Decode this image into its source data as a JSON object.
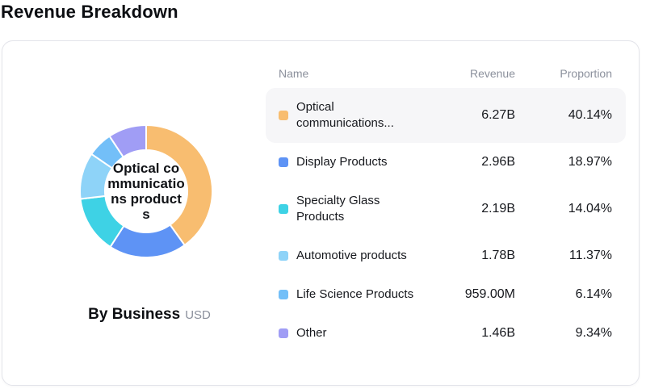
{
  "page": {
    "title": "Revenue Breakdown"
  },
  "chart": {
    "center_label": "Optical communications products",
    "caption": "By Business",
    "unit": "USD"
  },
  "table": {
    "columns": [
      "Name",
      "Revenue",
      "Proportion"
    ],
    "rows": [
      {
        "name": "Optical communications...",
        "revenue": "6.27B",
        "proportion": "40.14%",
        "color": "#F8BD70",
        "highlighted": true
      },
      {
        "name": "Display Products",
        "revenue": "2.96B",
        "proportion": "18.97%",
        "color": "#5E93F5",
        "highlighted": false
      },
      {
        "name": "Specialty Glass Products",
        "revenue": "2.19B",
        "proportion": "14.04%",
        "color": "#3ED2E5",
        "highlighted": false
      },
      {
        "name": "Automotive products",
        "revenue": "1.78B",
        "proportion": "11.37%",
        "color": "#8ED3F8",
        "highlighted": false
      },
      {
        "name": "Life Science Products",
        "revenue": "959.00M",
        "proportion": "6.14%",
        "color": "#73BFF8",
        "highlighted": false
      },
      {
        "name": "Other",
        "revenue": "1.46B",
        "proportion": "9.34%",
        "color": "#A09DF5",
        "highlighted": false
      }
    ]
  },
  "chart_data": {
    "type": "pie",
    "title": "Revenue Breakdown",
    "subtitle": "By Business (USD)",
    "donut": true,
    "start_angle_deg": 0,
    "direction": "clockwise",
    "center_label": "Optical communications products",
    "labels": [
      "Optical communications products",
      "Display Products",
      "Specialty Glass Products",
      "Automotive products",
      "Life Science Products",
      "Other"
    ],
    "revenue_display": [
      "6.27B",
      "2.96B",
      "2.19B",
      "1.78B",
      "959.00M",
      "1.46B"
    ],
    "values_billion_usd": [
      6.27,
      2.96,
      2.19,
      1.78,
      0.959,
      1.46
    ],
    "proportions_pct": [
      40.14,
      18.97,
      14.04,
      11.37,
      6.14,
      9.34
    ],
    "colors": [
      "#F8BD70",
      "#5E93F5",
      "#3ED2E5",
      "#8ED3F8",
      "#73BFF8",
      "#A09DF5"
    ]
  }
}
